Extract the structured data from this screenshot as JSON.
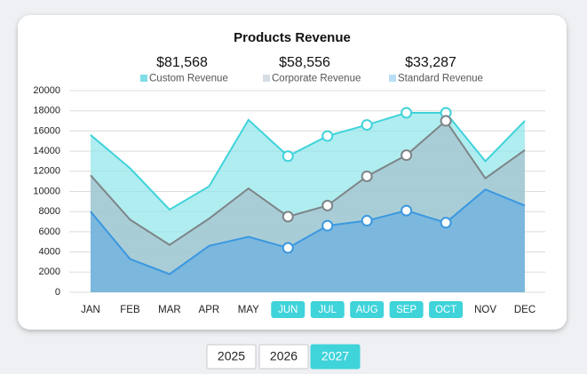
{
  "chart_data": {
    "type": "area",
    "title": "Products Revenue",
    "categories": [
      "JAN",
      "FEB",
      "MAR",
      "APR",
      "MAY",
      "JUN",
      "JUL",
      "AUG",
      "SEP",
      "OCT",
      "NOV",
      "DEC"
    ],
    "highlight_range": [
      5,
      9
    ],
    "series": [
      {
        "name": "Custom Revenue",
        "total": "$81,568",
        "color": "#3fd3da",
        "fill": "#8fe6ea",
        "swatch": "#7fdde6",
        "values": [
          15600,
          12300,
          8200,
          10500,
          17100,
          13500,
          15500,
          16600,
          17800,
          17800,
          13000,
          17000
        ]
      },
      {
        "name": "Corporate Revenue",
        "total": "$58,556",
        "color": "#7d8588",
        "fill": "#a7bfcb",
        "swatch": "#d6dde5",
        "values": [
          11600,
          7200,
          4700,
          7300,
          10300,
          7500,
          8600,
          11500,
          13600,
          17000,
          11300,
          14100
        ]
      },
      {
        "name": "Standard Revenue",
        "total": "$33,287",
        "color": "#3a98e0",
        "fill": "#6aaee0",
        "swatch": "#b8dff5",
        "values": [
          8000,
          3300,
          1800,
          4600,
          5500,
          4400,
          6600,
          7100,
          8100,
          6900,
          10200,
          8600
        ]
      }
    ],
    "ylim": [
      0,
      20000
    ],
    "yticks": [
      0,
      2000,
      4000,
      6000,
      8000,
      10000,
      12000,
      14000,
      16000,
      18000,
      20000
    ],
    "grid": true
  },
  "controls": {
    "years": [
      "2025",
      "2026",
      "2027"
    ],
    "selected": 2
  }
}
